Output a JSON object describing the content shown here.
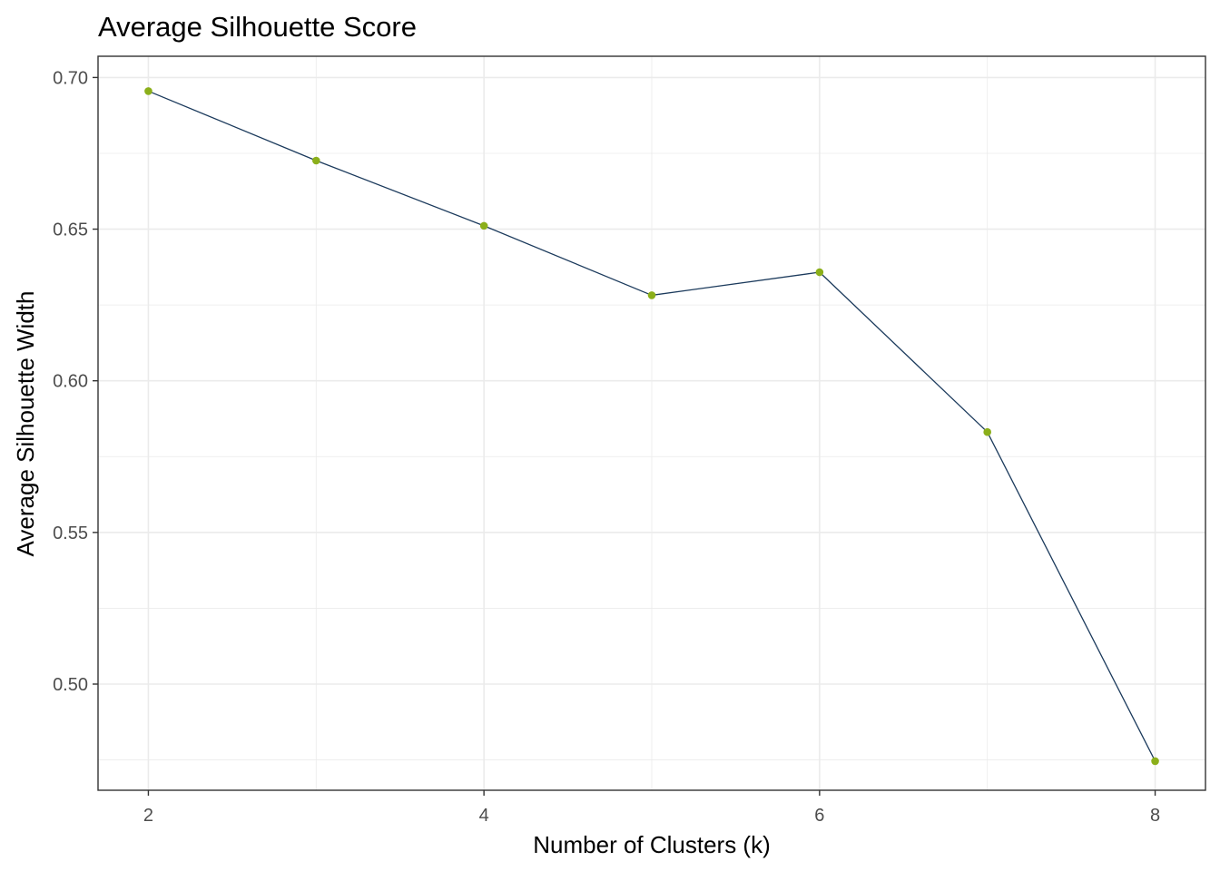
{
  "chart_data": {
    "type": "line",
    "title": "Average Silhouette Score",
    "xlabel": "Number of Clusters (k)",
    "ylabel": "Average Silhouette Width",
    "x": [
      2,
      3,
      4,
      5,
      6,
      7,
      8
    ],
    "series": [
      {
        "values": [
          0.6955,
          0.6726,
          0.6511,
          0.6282,
          0.6358,
          0.5831,
          0.4746
        ]
      }
    ],
    "xlim": [
      1.7,
      8.3
    ],
    "ylim": [
      0.465,
      0.707
    ],
    "x_ticks": [
      2,
      4,
      6,
      8
    ],
    "x_tick_labels": [
      "2",
      "4",
      "6",
      "8"
    ],
    "x_minor_ticks": [
      3,
      5,
      7
    ],
    "y_ticks": [
      0.5,
      0.55,
      0.6,
      0.65,
      0.7
    ],
    "y_tick_labels": [
      "0.50",
      "0.55",
      "0.60",
      "0.65",
      "0.70"
    ],
    "y_minor_ticks": [
      0.475,
      0.525,
      0.575,
      0.625,
      0.675
    ],
    "grid": true,
    "legend": "none",
    "colors": {
      "line": "#1B3A5C",
      "points": "#8BAF1A",
      "grid": "#EBEBEB",
      "panel_border": "#333333",
      "tick_text": "#4D4D4D",
      "title_text": "#000000"
    }
  }
}
